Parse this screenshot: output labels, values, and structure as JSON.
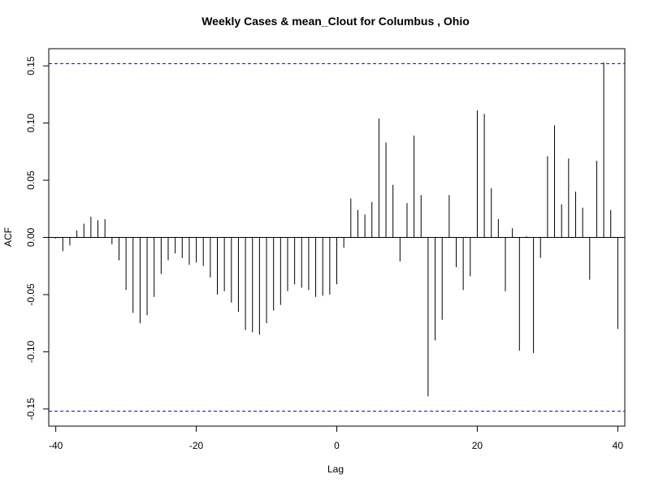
{
  "chart_data": {
    "type": "bar",
    "title": "Weekly Cases & mean_Clout for Columbus , Ohio",
    "xlabel": "Lag",
    "ylabel": "ACF",
    "xlim": [
      -41,
      41
    ],
    "ylim": [
      -0.165,
      0.165
    ],
    "x_ticks": [
      -40,
      -20,
      0,
      20,
      40
    ],
    "y_ticks": [
      -0.15,
      -0.1,
      -0.05,
      0.0,
      0.05,
      0.1,
      0.15
    ],
    "y_tick_labels": [
      "-0.15",
      "-0.10",
      "-0.05",
      "0.00",
      "0.05",
      "0.10",
      "0.15"
    ],
    "confidence_bound": 0.152,
    "bound_color": "#0000cc",
    "bar_color": "#000000",
    "zero_line": true,
    "grid": false,
    "lags": [
      -40,
      -39,
      -38,
      -37,
      -36,
      -35,
      -34,
      -33,
      -32,
      -31,
      -30,
      -29,
      -28,
      -27,
      -26,
      -25,
      -24,
      -23,
      -22,
      -21,
      -20,
      -19,
      -18,
      -17,
      -16,
      -15,
      -14,
      -13,
      -12,
      -11,
      -10,
      -9,
      -8,
      -7,
      -6,
      -5,
      -4,
      -3,
      -2,
      -1,
      0,
      1,
      2,
      3,
      4,
      5,
      6,
      7,
      8,
      9,
      10,
      11,
      12,
      13,
      14,
      15,
      16,
      17,
      18,
      19,
      20,
      21,
      22,
      23,
      24,
      25,
      26,
      27,
      28,
      29,
      30,
      31,
      32,
      33,
      34,
      35,
      36,
      37,
      38,
      39,
      40
    ],
    "acf": [
      -0.001,
      -0.012,
      -0.007,
      0.006,
      0.012,
      0.018,
      0.015,
      0.016,
      -0.006,
      -0.02,
      -0.046,
      -0.066,
      -0.075,
      -0.068,
      -0.052,
      -0.032,
      -0.02,
      -0.014,
      -0.018,
      -0.024,
      -0.022,
      -0.025,
      -0.035,
      -0.05,
      -0.047,
      -0.057,
      -0.065,
      -0.081,
      -0.083,
      -0.085,
      -0.075,
      -0.064,
      -0.059,
      -0.047,
      -0.041,
      -0.044,
      -0.046,
      -0.052,
      -0.051,
      -0.05,
      -0.041,
      -0.009,
      0.034,
      0.024,
      0.02,
      0.031,
      0.104,
      0.083,
      0.046,
      -0.021,
      0.03,
      0.089,
      0.037,
      -0.139,
      -0.09,
      -0.072,
      0.037,
      -0.026,
      -0.046,
      -0.034,
      0.111,
      0.108,
      0.043,
      0.016,
      -0.047,
      0.008,
      -0.099,
      0.001,
      -0.101,
      -0.018,
      0.071,
      0.098,
      0.029,
      0.069,
      0.04,
      0.026,
      -0.037,
      0.067,
      0.153,
      0.024,
      -0.08
    ]
  }
}
